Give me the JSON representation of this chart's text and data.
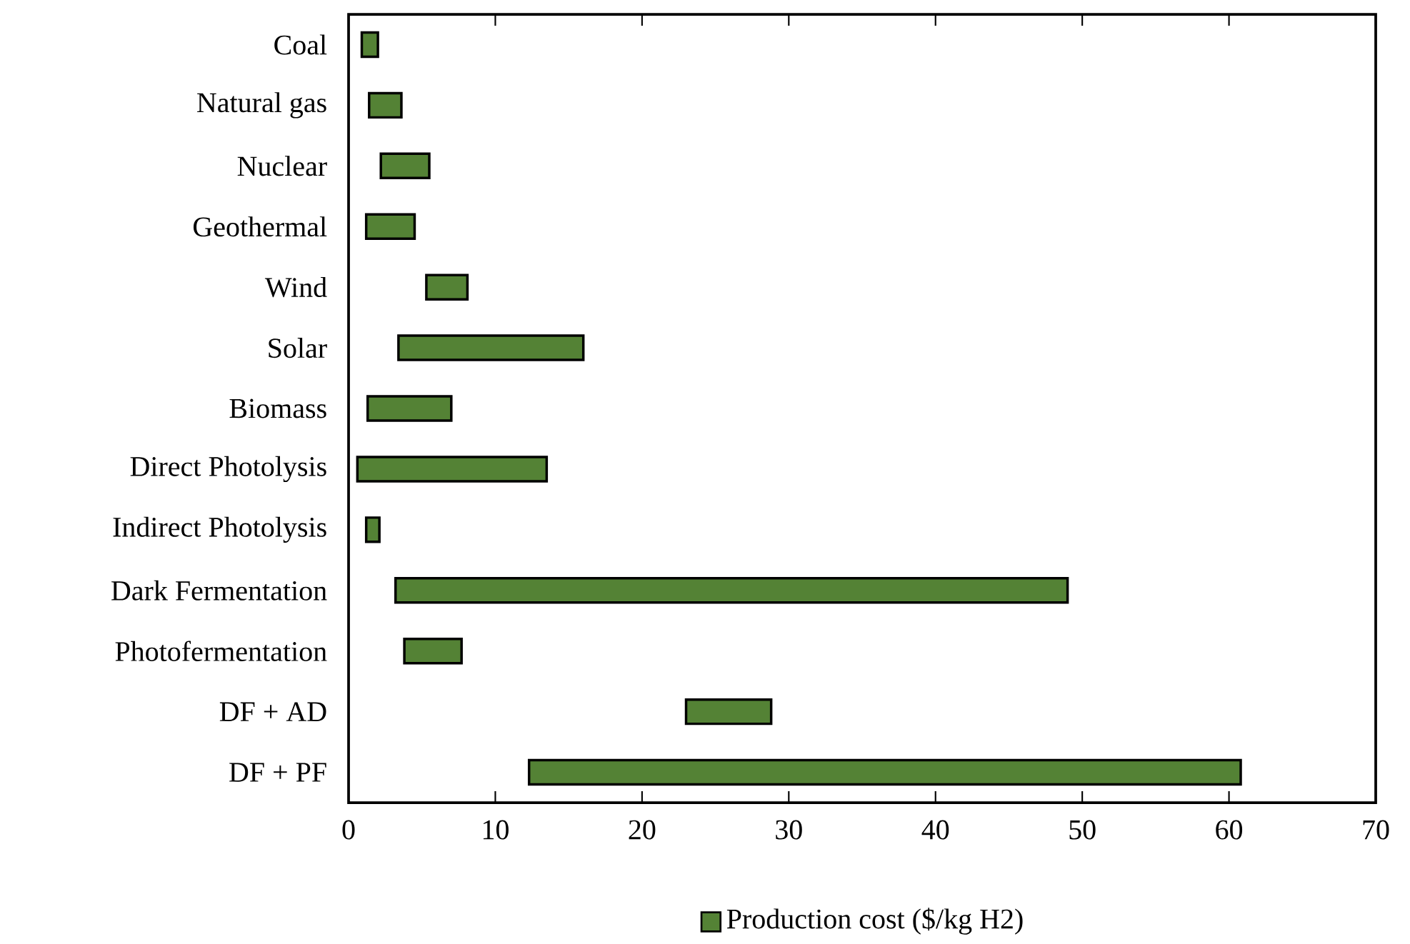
{
  "chart_data": {
    "type": "bar",
    "orientation": "horizontal",
    "categories": [
      "Coal",
      "Natural gas",
      "Nuclear",
      "Geothermal",
      "Wind",
      "Solar",
      "Biomass",
      "Direct Photolysis",
      "Indirect Photolysis",
      "Dark Fermentation",
      "Photofermentation",
      "DF + AD",
      "DF + PF"
    ],
    "series": [
      {
        "name": "Production cost ($/kg H2)",
        "color": "#548235",
        "base": [
          0.9,
          1.4,
          2.2,
          1.2,
          5.3,
          3.4,
          1.3,
          0.6,
          1.2,
          3.2,
          3.8,
          23.0,
          12.3
        ],
        "values": [
          1.1,
          2.2,
          3.3,
          3.3,
          2.8,
          12.6,
          5.7,
          12.9,
          0.9,
          45.8,
          3.9,
          5.8,
          48.5
        ]
      }
    ],
    "xlim": [
      0,
      70
    ],
    "xticks": [
      0,
      10,
      20,
      30,
      40,
      50,
      60,
      70
    ],
    "legend": "bottom",
    "grid": false
  }
}
